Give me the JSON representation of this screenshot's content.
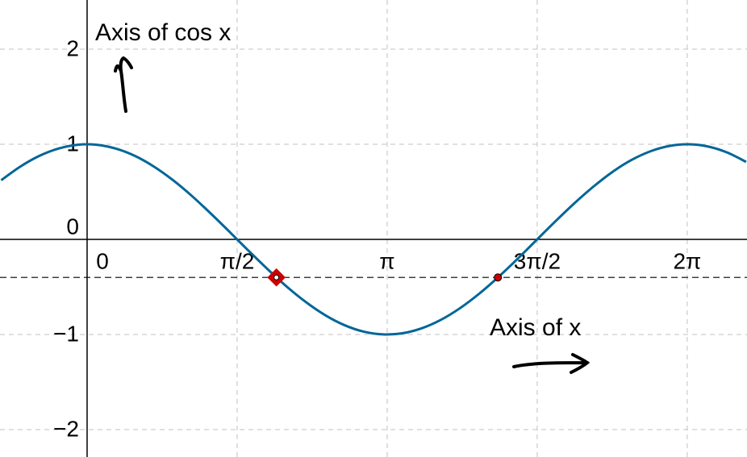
{
  "chart_data": {
    "type": "line",
    "x": [
      -0.9,
      -0.7,
      -0.5,
      -0.3,
      -0.1,
      0.1,
      0.3,
      0.5,
      0.7,
      0.9,
      1.1,
      1.3,
      1.5,
      1.7,
      1.9,
      2.1,
      2.3,
      2.5,
      2.7,
      2.9,
      3.1,
      3.3,
      3.5,
      3.7,
      3.9,
      4.1,
      4.3,
      4.5,
      4.7,
      4.9,
      5.1,
      5.3,
      5.5,
      5.7,
      5.9,
      6.1,
      6.3,
      6.5,
      6.7,
      6.9
    ],
    "series": [
      {
        "color": "#006699",
        "values": [
          0.622,
          0.765,
          0.878,
          0.955,
          0.995,
          0.995,
          0.955,
          0.878,
          0.765,
          0.622,
          0.454,
          0.267,
          0.071,
          -0.129,
          -0.323,
          -0.505,
          -0.666,
          -0.801,
          -0.904,
          -0.971,
          -0.999,
          -0.987,
          -0.936,
          -0.848,
          -0.726,
          -0.575,
          -0.401,
          -0.211,
          -0.012,
          0.187,
          0.378,
          0.554,
          0.709,
          0.835,
          0.927,
          0.983,
          1.0,
          0.977,
          0.914,
          0.815
        ]
      }
    ],
    "points": {
      "color": "#cc0000",
      "x": [
        1.982,
        4.301
      ],
      "y": [
        -0.4,
        -0.4
      ]
    },
    "reference_line": {
      "y": -0.4
    },
    "xlim": [
      -0.912,
      6.909
    ],
    "ylim": [
      -2.288,
      2.517
    ],
    "xticks": [
      0,
      {
        "value": 1.5708,
        "label": "π/2"
      },
      {
        "value": 3.1416,
        "label": "π"
      },
      {
        "value": 4.7124,
        "label": "3π/2"
      },
      {
        "value": 6.2832,
        "label": "2π"
      }
    ],
    "yticks": [
      {
        "value": -2,
        "label": "−2"
      },
      {
        "value": -1,
        "label": "−1"
      },
      0,
      1,
      2
    ],
    "grid": true,
    "annotations": [
      "Axis of cos x",
      "Axis of x"
    ]
  }
}
